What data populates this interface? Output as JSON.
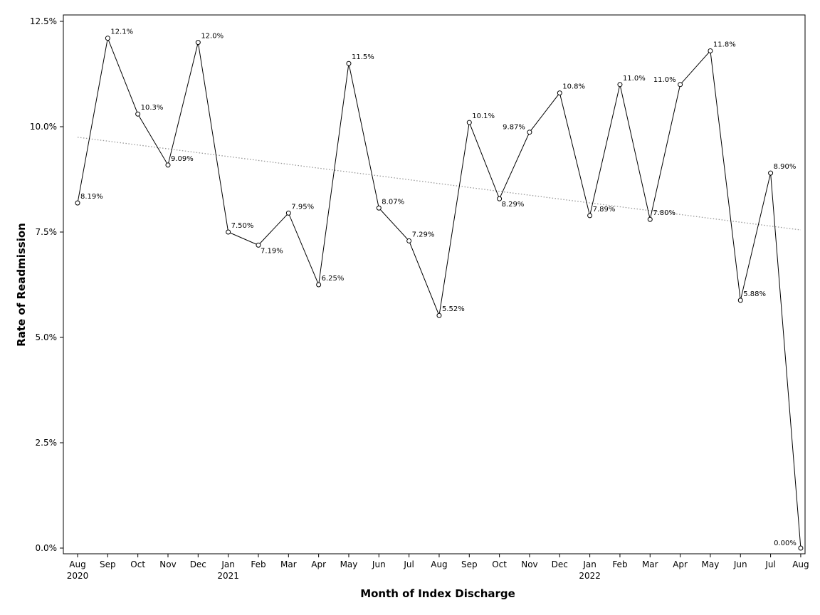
{
  "chart_data": {
    "type": "line",
    "title": "",
    "xlabel": "Month of Index Discharge",
    "ylabel": "Rate of Readmission",
    "ylim": [
      0,
      12.5
    ],
    "grid": false,
    "yticks": [
      {
        "value": 0,
        "label": "0.0%"
      },
      {
        "value": 2.5,
        "label": "2.5%"
      },
      {
        "value": 5,
        "label": "5.0%"
      },
      {
        "value": 7.5,
        "label": "7.5%"
      },
      {
        "value": 10,
        "label": "10.0%"
      },
      {
        "value": 12.5,
        "label": "12.5%"
      }
    ],
    "categories": [
      "Aug",
      "Sep",
      "Oct",
      "Nov",
      "Dec",
      "Jan",
      "Feb",
      "Mar",
      "Apr",
      "May",
      "Jun",
      "Jul",
      "Aug",
      "Sep",
      "Oct",
      "Nov",
      "Dec",
      "Jan",
      "Feb",
      "Mar",
      "Apr",
      "May",
      "Jun",
      "Jul",
      "Aug"
    ],
    "year_labels": [
      {
        "index": 0,
        "label": "2020"
      },
      {
        "index": 5,
        "label": "2021"
      },
      {
        "index": 17,
        "label": "2022"
      }
    ],
    "series": [
      {
        "values": [
          8.19,
          12.1,
          10.3,
          9.09,
          12.0,
          7.5,
          7.19,
          7.95,
          6.25,
          11.5,
          8.07,
          7.29,
          5.52,
          10.1,
          8.29,
          9.87,
          10.8,
          7.89,
          11.0,
          7.8,
          11.0,
          11.8,
          5.88,
          8.9,
          0.0
        ],
        "labels": [
          "8.19%",
          "12.1%",
          "10.3%",
          "9.09%",
          "12.0%",
          "7.50%",
          "7.19%",
          "7.95%",
          "6.25%",
          "11.5%",
          "8.07%",
          "7.29%",
          "5.52%",
          "10.1%",
          "8.29%",
          "9.87%",
          "10.8%",
          "7.89%",
          "11.0%",
          "7.80%",
          "11.0%",
          "11.8%",
          "5.88%",
          "8.90%",
          "0.00%"
        ],
        "label_side": [
          "r",
          "r",
          "r",
          "r",
          "r",
          "r",
          "br",
          "r",
          "r",
          "r",
          "r",
          "r",
          "r",
          "r",
          "br",
          "l",
          "r",
          "r",
          "r",
          "r",
          "l",
          "r",
          "r",
          "r",
          "l"
        ],
        "color": "#000000"
      }
    ],
    "trendline": {
      "start": 9.75,
      "end": 7.55,
      "color": "#999999",
      "style": "dotted"
    }
  }
}
